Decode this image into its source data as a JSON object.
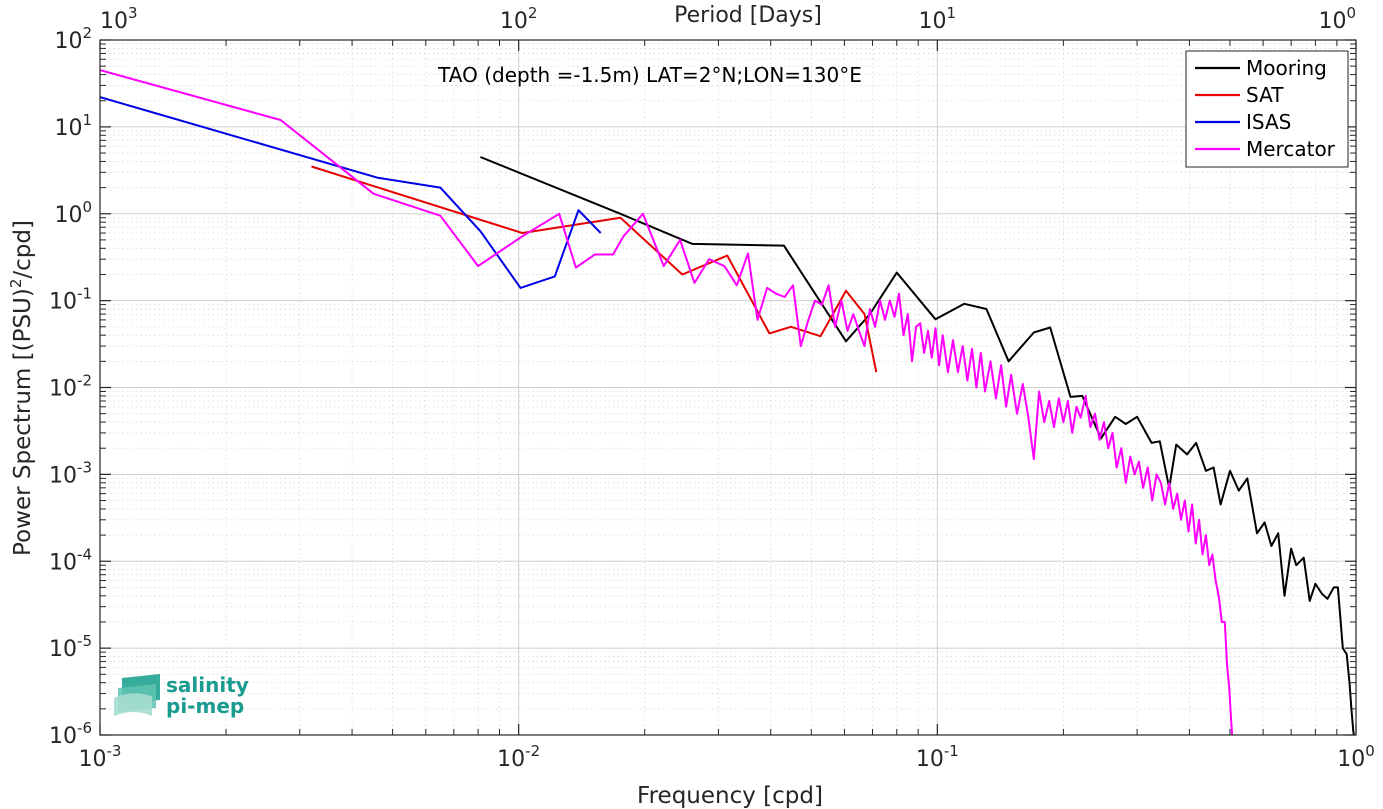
{
  "chart_data": {
    "type": "line",
    "title": "",
    "annotation": "TAO (depth =-1.5m) LAT=2°N;LON=130°E",
    "xlabel": "Frequency [cpd]",
    "ylabel_prefix": "Power Spectrum [(PSU)",
    "ylabel_sup": "2",
    "ylabel_suffix": "/cpd]",
    "top_xlabel": "Period [Days]",
    "x_scale": "log",
    "y_scale": "log",
    "xlim": [
      0.001,
      1
    ],
    "ylim": [
      1e-06,
      100
    ],
    "grid": true,
    "legend_position": "top-right",
    "x_ticks": [
      {
        "base": "10",
        "exp": "-3",
        "value": 0.001
      },
      {
        "base": "10",
        "exp": "-2",
        "value": 0.01
      },
      {
        "base": "10",
        "exp": "-1",
        "value": 0.1
      },
      {
        "base": "10",
        "exp": "0",
        "value": 1
      }
    ],
    "y_ticks": [
      {
        "base": "10",
        "exp": "-6",
        "value": 1e-06
      },
      {
        "base": "10",
        "exp": "-5",
        "value": 1e-05
      },
      {
        "base": "10",
        "exp": "-4",
        "value": 0.0001
      },
      {
        "base": "10",
        "exp": "-3",
        "value": 0.001
      },
      {
        "base": "10",
        "exp": "-2",
        "value": 0.01
      },
      {
        "base": "10",
        "exp": "-1",
        "value": 0.1
      },
      {
        "base": "10",
        "exp": "0",
        "value": 1
      },
      {
        "base": "10",
        "exp": "1",
        "value": 10
      },
      {
        "base": "10",
        "exp": "2",
        "value": 100
      }
    ],
    "top_ticks": [
      {
        "base": "10",
        "exp": "3",
        "freq": 0.001
      },
      {
        "base": "10",
        "exp": "2",
        "freq": 0.01
      },
      {
        "base": "10",
        "exp": "1",
        "freq": 0.1
      },
      {
        "base": "10",
        "exp": "0",
        "freq": 1
      }
    ],
    "series": [
      {
        "name": "Mooring",
        "color": "#000000",
        "points": [
          [
            0.0081,
            4.5
          ],
          [
            0.0175,
            1.0
          ],
          [
            0.026,
            0.45
          ],
          [
            0.043,
            0.43
          ],
          [
            0.0605,
            0.034
          ],
          [
            0.069,
            0.07
          ],
          [
            0.08,
            0.21
          ],
          [
            0.099,
            0.061
          ],
          [
            0.116,
            0.092
          ],
          [
            0.131,
            0.08
          ],
          [
            0.148,
            0.02
          ],
          [
            0.17,
            0.043
          ],
          [
            0.186,
            0.049
          ],
          [
            0.208,
            0.0078
          ],
          [
            0.222,
            0.008
          ],
          [
            0.246,
            0.0026
          ],
          [
            0.266,
            0.0046
          ],
          [
            0.282,
            0.0038
          ],
          [
            0.3,
            0.0046
          ],
          [
            0.325,
            0.0023
          ],
          [
            0.34,
            0.0024
          ],
          [
            0.358,
            0.0007
          ],
          [
            0.372,
            0.0022
          ],
          [
            0.395,
            0.0017
          ],
          [
            0.415,
            0.0023
          ],
          [
            0.438,
            0.0011
          ],
          [
            0.457,
            0.0012
          ],
          [
            0.475,
            0.00045
          ],
          [
            0.5,
            0.0011
          ],
          [
            0.525,
            0.00065
          ],
          [
            0.55,
            0.0009
          ],
          [
            0.58,
            0.00021
          ],
          [
            0.605,
            0.00028
          ],
          [
            0.628,
            0.00015
          ],
          [
            0.652,
            0.00021
          ],
          [
            0.675,
            4e-05
          ],
          [
            0.7,
            0.00014
          ],
          [
            0.72,
            9e-05
          ],
          [
            0.75,
            0.00011
          ],
          [
            0.775,
            3.5e-05
          ],
          [
            0.8,
            5.5e-05
          ],
          [
            0.83,
            4.2e-05
          ],
          [
            0.855,
            3.7e-05
          ],
          [
            0.885,
            5e-05
          ],
          [
            0.905,
            5e-05
          ],
          [
            0.93,
            1e-05
          ],
          [
            0.95,
            8.5e-06
          ],
          [
            0.965,
            4e-06
          ],
          [
            0.975,
            2e-06
          ],
          [
            0.985,
            1.1e-06
          ],
          [
            0.992,
            9e-07
          ],
          [
            1.0,
            9e-07
          ]
        ]
      },
      {
        "name": "SAT",
        "color": "#e60000",
        "points": [
          [
            0.0032,
            3.5
          ],
          [
            0.0102,
            0.6
          ],
          [
            0.0175,
            0.9
          ],
          [
            0.0246,
            0.2
          ],
          [
            0.0315,
            0.33
          ],
          [
            0.0397,
            0.042
          ],
          [
            0.0447,
            0.05
          ],
          [
            0.0526,
            0.039
          ],
          [
            0.0605,
            0.13
          ],
          [
            0.067,
            0.07
          ],
          [
            0.0715,
            0.015
          ]
        ]
      },
      {
        "name": "ISAS",
        "color": "#0000e6",
        "points": [
          [
            0.001,
            22
          ],
          [
            0.0046,
            2.6
          ],
          [
            0.0065,
            2.0
          ],
          [
            0.0081,
            0.63
          ],
          [
            0.0101,
            0.14
          ],
          [
            0.0122,
            0.19
          ],
          [
            0.0139,
            1.1
          ],
          [
            0.0157,
            0.6
          ]
        ]
      },
      {
        "name": "Mercator",
        "color": "#ff00ff",
        "points": [
          [
            0.001,
            45
          ],
          [
            0.0027,
            12
          ],
          [
            0.0045,
            1.7
          ],
          [
            0.0065,
            0.95
          ],
          [
            0.008,
            0.25
          ],
          [
            0.0102,
            0.55
          ],
          [
            0.0125,
            1.0
          ],
          [
            0.0137,
            0.24
          ],
          [
            0.0152,
            0.34
          ],
          [
            0.0168,
            0.34
          ],
          [
            0.0178,
            0.55
          ],
          [
            0.0198,
            1.0
          ],
          [
            0.0222,
            0.25
          ],
          [
            0.0243,
            0.5
          ],
          [
            0.0263,
            0.16
          ],
          [
            0.0285,
            0.3
          ],
          [
            0.031,
            0.25
          ],
          [
            0.0332,
            0.15
          ],
          [
            0.0353,
            0.35
          ],
          [
            0.0372,
            0.06
          ],
          [
            0.0392,
            0.14
          ],
          [
            0.0412,
            0.12
          ],
          [
            0.0432,
            0.11
          ],
          [
            0.0452,
            0.15
          ],
          [
            0.0472,
            0.03
          ],
          [
            0.0492,
            0.06
          ],
          [
            0.051,
            0.1
          ],
          [
            0.053,
            0.09
          ],
          [
            0.055,
            0.15
          ],
          [
            0.057,
            0.05
          ],
          [
            0.059,
            0.1
          ],
          [
            0.061,
            0.045
          ],
          [
            0.063,
            0.07
          ],
          [
            0.065,
            0.045
          ],
          [
            0.067,
            0.03
          ],
          [
            0.069,
            0.08
          ],
          [
            0.071,
            0.05
          ],
          [
            0.073,
            0.1
          ],
          [
            0.075,
            0.06
          ],
          [
            0.077,
            0.1
          ],
          [
            0.079,
            0.065
          ],
          [
            0.081,
            0.12
          ],
          [
            0.083,
            0.04
          ],
          [
            0.085,
            0.07
          ],
          [
            0.087,
            0.02
          ],
          [
            0.089,
            0.05
          ],
          [
            0.091,
            0.055
          ],
          [
            0.093,
            0.025
          ],
          [
            0.095,
            0.045
          ],
          [
            0.097,
            0.022
          ],
          [
            0.099,
            0.048
          ],
          [
            0.101,
            0.018
          ],
          [
            0.103,
            0.04
          ],
          [
            0.106,
            0.015
          ],
          [
            0.109,
            0.035
          ],
          [
            0.112,
            0.015
          ],
          [
            0.115,
            0.03
          ],
          [
            0.118,
            0.012
          ],
          [
            0.121,
            0.028
          ],
          [
            0.124,
            0.01
          ],
          [
            0.127,
            0.025
          ],
          [
            0.13,
            0.009
          ],
          [
            0.134,
            0.02
          ],
          [
            0.138,
            0.0075
          ],
          [
            0.142,
            0.018
          ],
          [
            0.146,
            0.006
          ],
          [
            0.15,
            0.014
          ],
          [
            0.155,
            0.005
          ],
          [
            0.16,
            0.011
          ],
          [
            0.165,
            0.0045
          ],
          [
            0.17,
            0.0015
          ],
          [
            0.175,
            0.009
          ],
          [
            0.18,
            0.004
          ],
          [
            0.185,
            0.007
          ],
          [
            0.19,
            0.0035
          ],
          [
            0.195,
            0.0075
          ],
          [
            0.2,
            0.004
          ],
          [
            0.205,
            0.007
          ],
          [
            0.21,
            0.003
          ],
          [
            0.215,
            0.006
          ],
          [
            0.22,
            0.0045
          ],
          [
            0.226,
            0.008
          ],
          [
            0.232,
            0.0035
          ],
          [
            0.238,
            0.005
          ],
          [
            0.244,
            0.0025
          ],
          [
            0.25,
            0.004
          ],
          [
            0.256,
            0.002
          ],
          [
            0.262,
            0.003
          ],
          [
            0.268,
            0.0012
          ],
          [
            0.275,
            0.002
          ],
          [
            0.282,
            0.0008
          ],
          [
            0.289,
            0.0016
          ],
          [
            0.296,
            0.001
          ],
          [
            0.303,
            0.0014
          ],
          [
            0.31,
            0.0007
          ],
          [
            0.318,
            0.0012
          ],
          [
            0.326,
            0.0005
          ],
          [
            0.334,
            0.001
          ],
          [
            0.342,
            0.0008
          ],
          [
            0.35,
            0.00045
          ],
          [
            0.358,
            0.0008
          ],
          [
            0.366,
            0.0004
          ],
          [
            0.374,
            0.0006
          ],
          [
            0.382,
            0.0003
          ],
          [
            0.39,
            0.0005
          ],
          [
            0.398,
            0.00022
          ],
          [
            0.406,
            0.00045
          ],
          [
            0.414,
            0.00016
          ],
          [
            0.422,
            0.0003
          ],
          [
            0.43,
            0.00012
          ],
          [
            0.438,
            0.0002
          ],
          [
            0.446,
            9e-05
          ],
          [
            0.454,
            0.00012
          ],
          [
            0.462,
            6e-05
          ],
          [
            0.47,
            4e-05
          ],
          [
            0.478,
            2e-05
          ],
          [
            0.486,
            2e-05
          ],
          [
            0.492,
            6.5e-06
          ],
          [
            0.498,
            3.5e-06
          ],
          [
            0.503,
            1.5e-06
          ],
          [
            0.506,
            1e-06
          ]
        ]
      }
    ]
  },
  "logo": {
    "line1": "salinity",
    "line2": "pi-mep"
  }
}
